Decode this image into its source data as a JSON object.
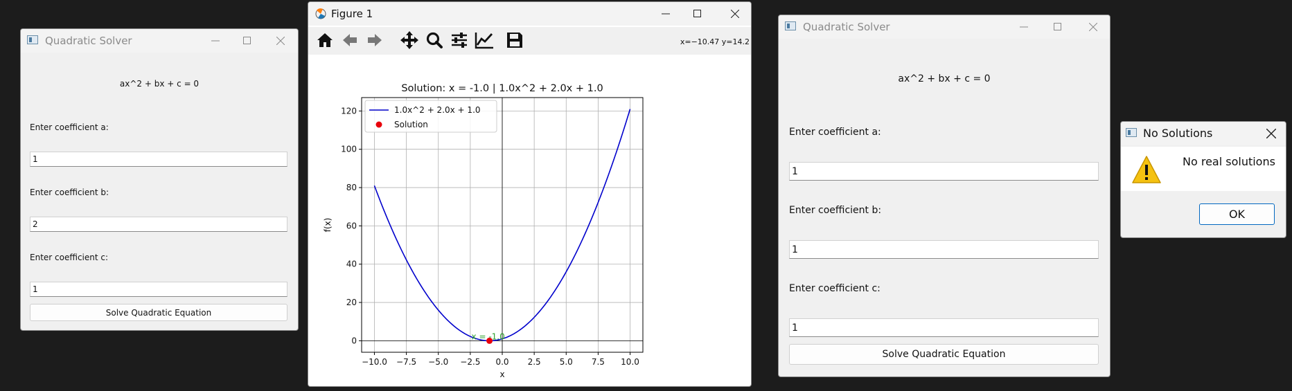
{
  "left_window": {
    "title": "Quadratic Solver",
    "equation": "ax^2 + bx + c = 0",
    "label_a": "Enter coefficient a:",
    "value_a": "1",
    "label_b": "Enter coefficient b:",
    "value_b": "2",
    "label_c": "Enter coefficient c:",
    "value_c": "1",
    "solve_label": "Solve Quadratic Equation"
  },
  "figure_window": {
    "title": "Figure 1",
    "coords_readout": "x=−10.47 y=14.2",
    "toolbar": [
      "home-icon",
      "back-arrow-icon",
      "forward-arrow-icon",
      "pan-icon",
      "zoom-icon",
      "configure-subplots-icon",
      "edit-axis-icon",
      "save-icon"
    ]
  },
  "chart_data": {
    "type": "line",
    "title": "Solution: x = -1.0 | 1.0x^2 + 2.0x + 1.0",
    "xlabel": "x",
    "ylabel": "f(x)",
    "xlim": [
      -11.0,
      11.0
    ],
    "ylim": [
      -6.0,
      127.0
    ],
    "xticks": [
      -10.0,
      -7.5,
      -5.0,
      -2.5,
      0.0,
      2.5,
      5.0,
      7.5,
      10.0
    ],
    "xtick_labels": [
      "−10.0",
      "−7.5",
      "−5.0",
      "−2.5",
      "0.0",
      "2.5",
      "5.0",
      "7.5",
      "10.0"
    ],
    "yticks": [
      0,
      20,
      40,
      60,
      80,
      100,
      120
    ],
    "grid": true,
    "legend_position": "top-left",
    "series": [
      {
        "name": "1.0x^2 + 2.0x + 1.0",
        "kind": "line",
        "color": "#0000cc",
        "coefficients": [
          1.0,
          2.0,
          1.0
        ],
        "x_range": [
          -10,
          10
        ]
      },
      {
        "name": "Solution",
        "kind": "scatter",
        "color": "#e8000b",
        "points": [
          [
            -1.0,
            0.0
          ]
        ]
      }
    ],
    "annotation": {
      "text": "x = -1.0",
      "x": -1.0,
      "y": 0.0,
      "color": "#2ca02c"
    }
  },
  "right_window": {
    "title": "Quadratic Solver",
    "equation": "ax^2 + bx + c = 0",
    "label_a": "Enter coefficient a:",
    "value_a": "1",
    "label_b": "Enter coefficient b:",
    "value_b": "1",
    "label_c": "Enter coefficient c:",
    "value_c": "1",
    "solve_label": "Solve Quadratic Equation"
  },
  "dialog": {
    "title": "No Solutions",
    "message": "No real solutions",
    "ok_label": "OK"
  }
}
